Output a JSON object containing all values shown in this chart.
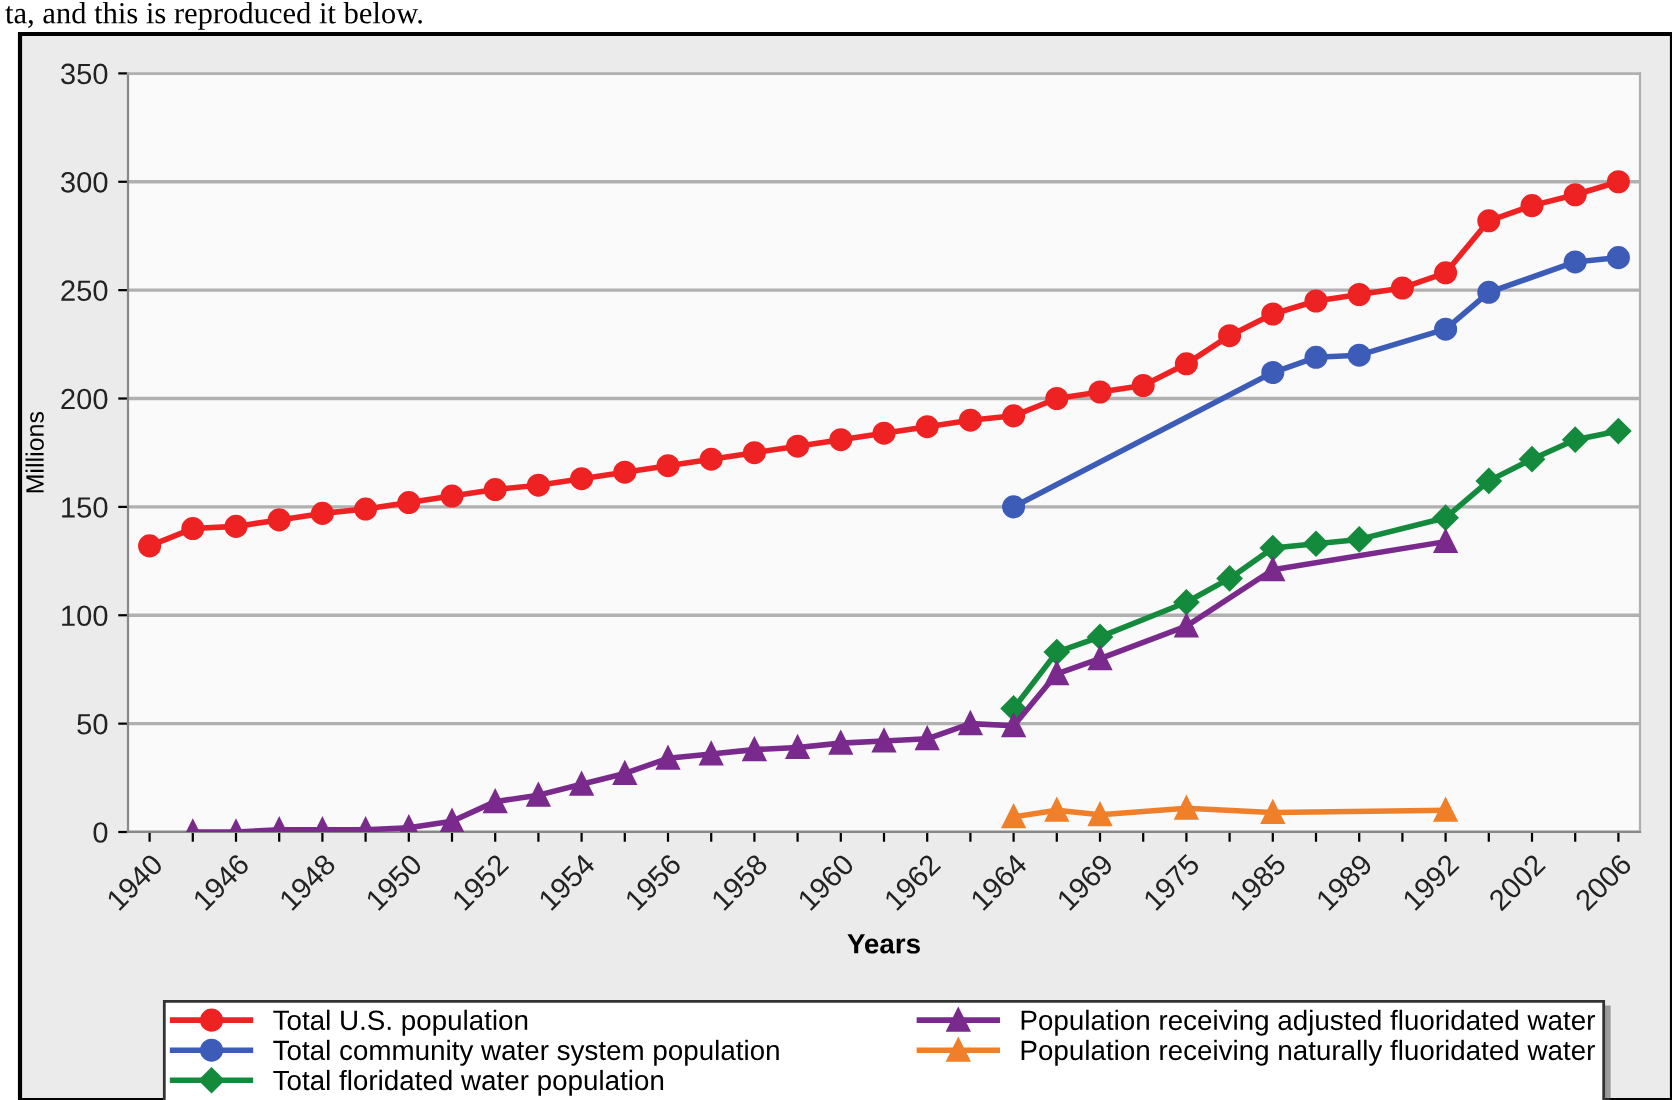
{
  "chart_data": {
    "type": "line",
    "xlabel": "Years",
    "ylabel": "Millions",
    "annotations": [
      "ta, and this is reproduced it below."
    ],
    "categories": [
      "1940",
      null,
      "1946",
      null,
      "1948",
      null,
      "1950",
      null,
      "1952",
      null,
      "1954",
      null,
      "1956",
      null,
      "1958",
      null,
      "1960",
      null,
      "1962",
      null,
      "1964",
      null,
      "1969",
      null,
      "1975",
      null,
      "1985",
      null,
      "1989",
      null,
      "1992",
      null,
      "2002",
      null,
      "2006"
    ],
    "ylim": [
      0,
      350
    ],
    "yticks": [
      0,
      50,
      100,
      150,
      200,
      250,
      300,
      350
    ],
    "grid": "y",
    "legend": "bottom",
    "series": [
      {
        "name": "Total U.S. population",
        "color": "#ee2222",
        "marker": "circle",
        "values": [
          132,
          140,
          141,
          144,
          147,
          149,
          152,
          155,
          158,
          160,
          163,
          166,
          169,
          172,
          175,
          178,
          181,
          184,
          187,
          190,
          192,
          200,
          203,
          206,
          216,
          229,
          239,
          245,
          248,
          251,
          258,
          282,
          289,
          294,
          300
        ]
      },
      {
        "name": "Total community water system population",
        "color": "#3c5cb8",
        "marker": "circle",
        "values": [
          null,
          null,
          null,
          null,
          null,
          null,
          null,
          null,
          null,
          null,
          null,
          null,
          null,
          null,
          null,
          null,
          null,
          null,
          null,
          null,
          150,
          null,
          null,
          null,
          null,
          null,
          212,
          219,
          220,
          null,
          232,
          249,
          null,
          263,
          265
        ]
      },
      {
        "name": "Total floridated water population",
        "color": "#138a3c",
        "marker": "diamond",
        "values": [
          null,
          null,
          null,
          null,
          null,
          null,
          null,
          null,
          null,
          null,
          null,
          null,
          null,
          null,
          null,
          null,
          null,
          null,
          null,
          null,
          57,
          83,
          90,
          null,
          106,
          117,
          131,
          133,
          135,
          null,
          145,
          162,
          172,
          181,
          185
        ]
      },
      {
        "name": "Population receiving adjusted fluoridated water",
        "color": "#7a2a8c",
        "marker": "triangle",
        "values": [
          null,
          0,
          0,
          1,
          1,
          1,
          2,
          5,
          14,
          17,
          22,
          27,
          34,
          36,
          38,
          39,
          41,
          42,
          43,
          50,
          49,
          73,
          80,
          null,
          95,
          null,
          121,
          null,
          null,
          null,
          134,
          null,
          null,
          null,
          null
        ]
      },
      {
        "name": "Population receiving naturally fluoridated water",
        "color": "#f07f2a",
        "marker": "triangle",
        "values": [
          null,
          null,
          null,
          null,
          null,
          null,
          null,
          null,
          null,
          null,
          null,
          null,
          null,
          null,
          null,
          null,
          null,
          null,
          null,
          null,
          7,
          10,
          8,
          null,
          11,
          null,
          9,
          null,
          null,
          null,
          10,
          null,
          null,
          null,
          null
        ]
      }
    ]
  }
}
